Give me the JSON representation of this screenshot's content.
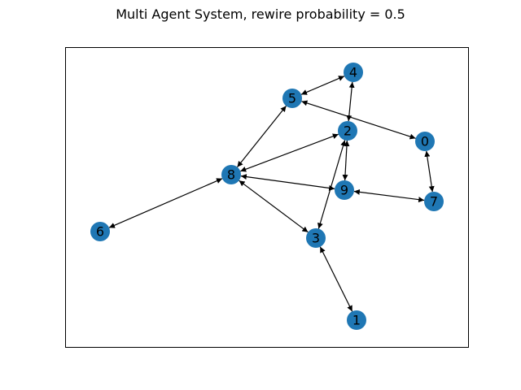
{
  "title": "Multi Agent System, rewire probability = 0.5",
  "colors": {
    "node_fill": "#1f77b4",
    "edge": "#000000",
    "label": "#000000",
    "frame": "#000000",
    "background": "#ffffff"
  },
  "graph": {
    "directed": true,
    "nodes": [
      {
        "id": "0",
        "label": "0"
      },
      {
        "id": "1",
        "label": "1"
      },
      {
        "id": "2",
        "label": "2"
      },
      {
        "id": "3",
        "label": "3"
      },
      {
        "id": "4",
        "label": "4"
      },
      {
        "id": "5",
        "label": "5"
      },
      {
        "id": "6",
        "label": "6"
      },
      {
        "id": "7",
        "label": "7"
      },
      {
        "id": "8",
        "label": "8"
      },
      {
        "id": "9",
        "label": "9"
      }
    ],
    "edges": [
      {
        "source": "4",
        "target": "5",
        "bidirectional": true
      },
      {
        "source": "4",
        "target": "2",
        "bidirectional": true
      },
      {
        "source": "5",
        "target": "0",
        "bidirectional": true
      },
      {
        "source": "5",
        "target": "8",
        "bidirectional": true
      },
      {
        "source": "2",
        "target": "8",
        "bidirectional": true
      },
      {
        "source": "2",
        "target": "9",
        "bidirectional": true
      },
      {
        "source": "2",
        "target": "3",
        "bidirectional": true
      },
      {
        "source": "0",
        "target": "7",
        "bidirectional": true
      },
      {
        "source": "8",
        "target": "9",
        "bidirectional": true
      },
      {
        "source": "9",
        "target": "7",
        "bidirectional": true
      },
      {
        "source": "8",
        "target": "6",
        "bidirectional": true
      },
      {
        "source": "8",
        "target": "3",
        "bidirectional": true
      },
      {
        "source": "3",
        "target": "1",
        "bidirectional": true
      }
    ]
  }
}
